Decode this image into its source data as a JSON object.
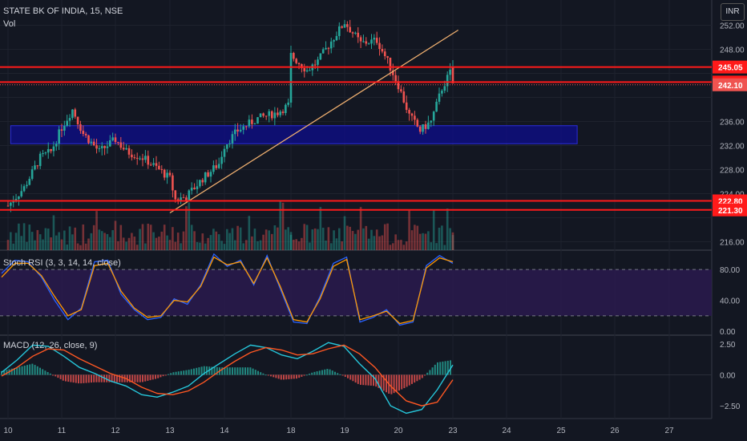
{
  "header": {
    "title": "STATE BK OF INDIA, 15, NSE",
    "volume_label": "Vol",
    "currency": "INR",
    "stoch_label": "Stoch RSI (3, 3, 14, 14, close)",
    "macd_label": "MACD (12, 26, close, 9)"
  },
  "colors": {
    "background": "#131722",
    "up": "#26a69a",
    "down": "#ef5350",
    "level_line": "#ff1a1a",
    "zone": "#0d0d8c",
    "trendline": "#f0b070",
    "stoch_k": "#2962ff",
    "stoch_d": "#ff9800",
    "stoch_band": "#2a1a4e",
    "macd": "#26c6da",
    "signal": "#ff5722"
  },
  "chart_data": [
    {
      "type": "candlestick",
      "pane": "price",
      "x_ticks": [
        "10",
        "11",
        "12",
        "13",
        "14",
        "18",
        "19",
        "20",
        "23",
        "24",
        "25",
        "26",
        "27"
      ],
      "y_ticks": [
        216.0,
        220.0,
        224.0,
        228.0,
        232.0,
        236.0,
        240.0,
        244.0,
        248.0,
        252.0
      ],
      "y_tick_labels": [
        "216.00",
        "",
        "224.00",
        "228.00",
        "232.00",
        "236.00",
        "",
        "",
        "248.00",
        "252.00"
      ],
      "ylim": [
        214.6,
        256.2
      ],
      "price_labels": [
        {
          "label": "245.05",
          "value": 245.05,
          "style": "level"
        },
        {
          "label": "242.55",
          "value": 242.55,
          "style": "level"
        },
        {
          "label": "242.10",
          "value": 242.1,
          "style": "last"
        },
        {
          "label": "222.80",
          "value": 222.8,
          "style": "level"
        },
        {
          "label": "221.30",
          "value": 221.3,
          "style": "level"
        }
      ],
      "horizontal_levels": [
        245.05,
        242.55,
        222.8,
        221.3
      ],
      "zone": {
        "from_day": 10.05,
        "to_day": 25.3,
        "low": 232.3,
        "high": 235.3
      },
      "trendline": {
        "start": [
          13.0,
          220.8
        ],
        "end": [
          23.1,
          251.2
        ]
      },
      "anchors": [
        [
          10.0,
          222.0
        ],
        [
          10.3,
          225.0
        ],
        [
          10.6,
          230.0
        ],
        [
          10.8,
          231.0
        ],
        [
          11.0,
          235.0
        ],
        [
          11.2,
          238.0
        ],
        [
          11.4,
          234.0
        ],
        [
          11.7,
          231.0
        ],
        [
          12.0,
          233.0
        ],
        [
          12.2,
          231.0
        ],
        [
          12.5,
          230.0
        ],
        [
          12.8,
          228.0
        ],
        [
          13.0,
          226.5
        ],
        [
          13.1,
          223.0
        ],
        [
          13.3,
          223.5
        ],
        [
          13.6,
          226.5
        ],
        [
          13.9,
          229.0
        ],
        [
          14.0,
          232.0
        ],
        [
          14.2,
          234.5
        ],
        [
          14.5,
          236.5
        ],
        [
          14.8,
          237.5
        ],
        [
          15.2,
          239.0
        ],
        [
          18.0,
          247.0
        ],
        [
          18.3,
          244.5
        ],
        [
          18.5,
          246.0
        ],
        [
          18.8,
          250.0
        ],
        [
          19.0,
          252.5
        ],
        [
          19.3,
          249.0
        ],
        [
          19.6,
          249.5
        ],
        [
          19.8,
          246.0
        ],
        [
          20.0,
          242.0
        ],
        [
          20.2,
          237.0
        ],
        [
          20.4,
          234.5
        ],
        [
          20.6,
          236.0
        ],
        [
          20.8,
          241.5
        ],
        [
          21.0,
          245.0
        ],
        [
          21.1,
          242.1
        ]
      ],
      "volume_scale_max": 100
    },
    {
      "type": "line",
      "pane": "stoch_rsi",
      "ylim": [
        -5,
        105
      ],
      "y_ticks": [
        0,
        40,
        80
      ],
      "y_tick_labels": [
        "0.00",
        "40.00",
        "80.00"
      ],
      "band": [
        20,
        80
      ],
      "series": [
        {
          "name": "",
          "color": "#2962ff",
          "values": [
            75,
            92,
            90,
            70,
            40,
            15,
            30,
            90,
            92,
            48,
            28,
            15,
            18,
            42,
            35,
            60,
            100,
            84,
            92,
            60,
            98,
            55,
            12,
            10,
            45,
            88,
            96,
            12,
            18,
            28,
            8,
            12,
            85,
            98,
            88
          ]
        },
        {
          "name": "",
          "color": "#ff9800",
          "values": [
            70,
            88,
            88,
            72,
            45,
            20,
            28,
            85,
            88,
            52,
            30,
            18,
            20,
            40,
            38,
            58,
            96,
            86,
            90,
            62,
            95,
            58,
            15,
            12,
            42,
            84,
            93,
            15,
            20,
            26,
            10,
            14,
            82,
            95,
            90
          ]
        }
      ]
    },
    {
      "type": "bar+line",
      "pane": "macd",
      "ylim": [
        -3.4,
        3.2
      ],
      "y_ticks": [
        -2.5,
        0,
        2.5
      ],
      "y_tick_labels": [
        "−2.50",
        "0.00",
        "2.50"
      ],
      "series": [
        {
          "name": "",
          "color": "#26c6da",
          "values": [
            0.2,
            1.2,
            2.4,
            2.3,
            1.5,
            0.6,
            0.1,
            -0.5,
            -0.9,
            -1.6,
            -1.8,
            -1.4,
            -0.9,
            0.1,
            0.9,
            1.7,
            2.4,
            2.2,
            1.6,
            1.3,
            1.9,
            2.6,
            2.3,
            0.9,
            -0.3,
            -2.5,
            -3.1,
            -2.8,
            -1.2,
            0.8
          ]
        },
        {
          "name": "",
          "color": "#ff5722",
          "values": [
            -0.1,
            0.6,
            1.5,
            2.1,
            2.0,
            1.3,
            0.7,
            0.1,
            -0.3,
            -1.0,
            -1.5,
            -1.6,
            -1.3,
            -0.6,
            0.3,
            1.1,
            1.8,
            2.2,
            2.0,
            1.6,
            1.7,
            2.1,
            2.4,
            1.7,
            0.6,
            -0.9,
            -2.1,
            -2.5,
            -2.2,
            -0.4
          ]
        }
      ]
    }
  ]
}
